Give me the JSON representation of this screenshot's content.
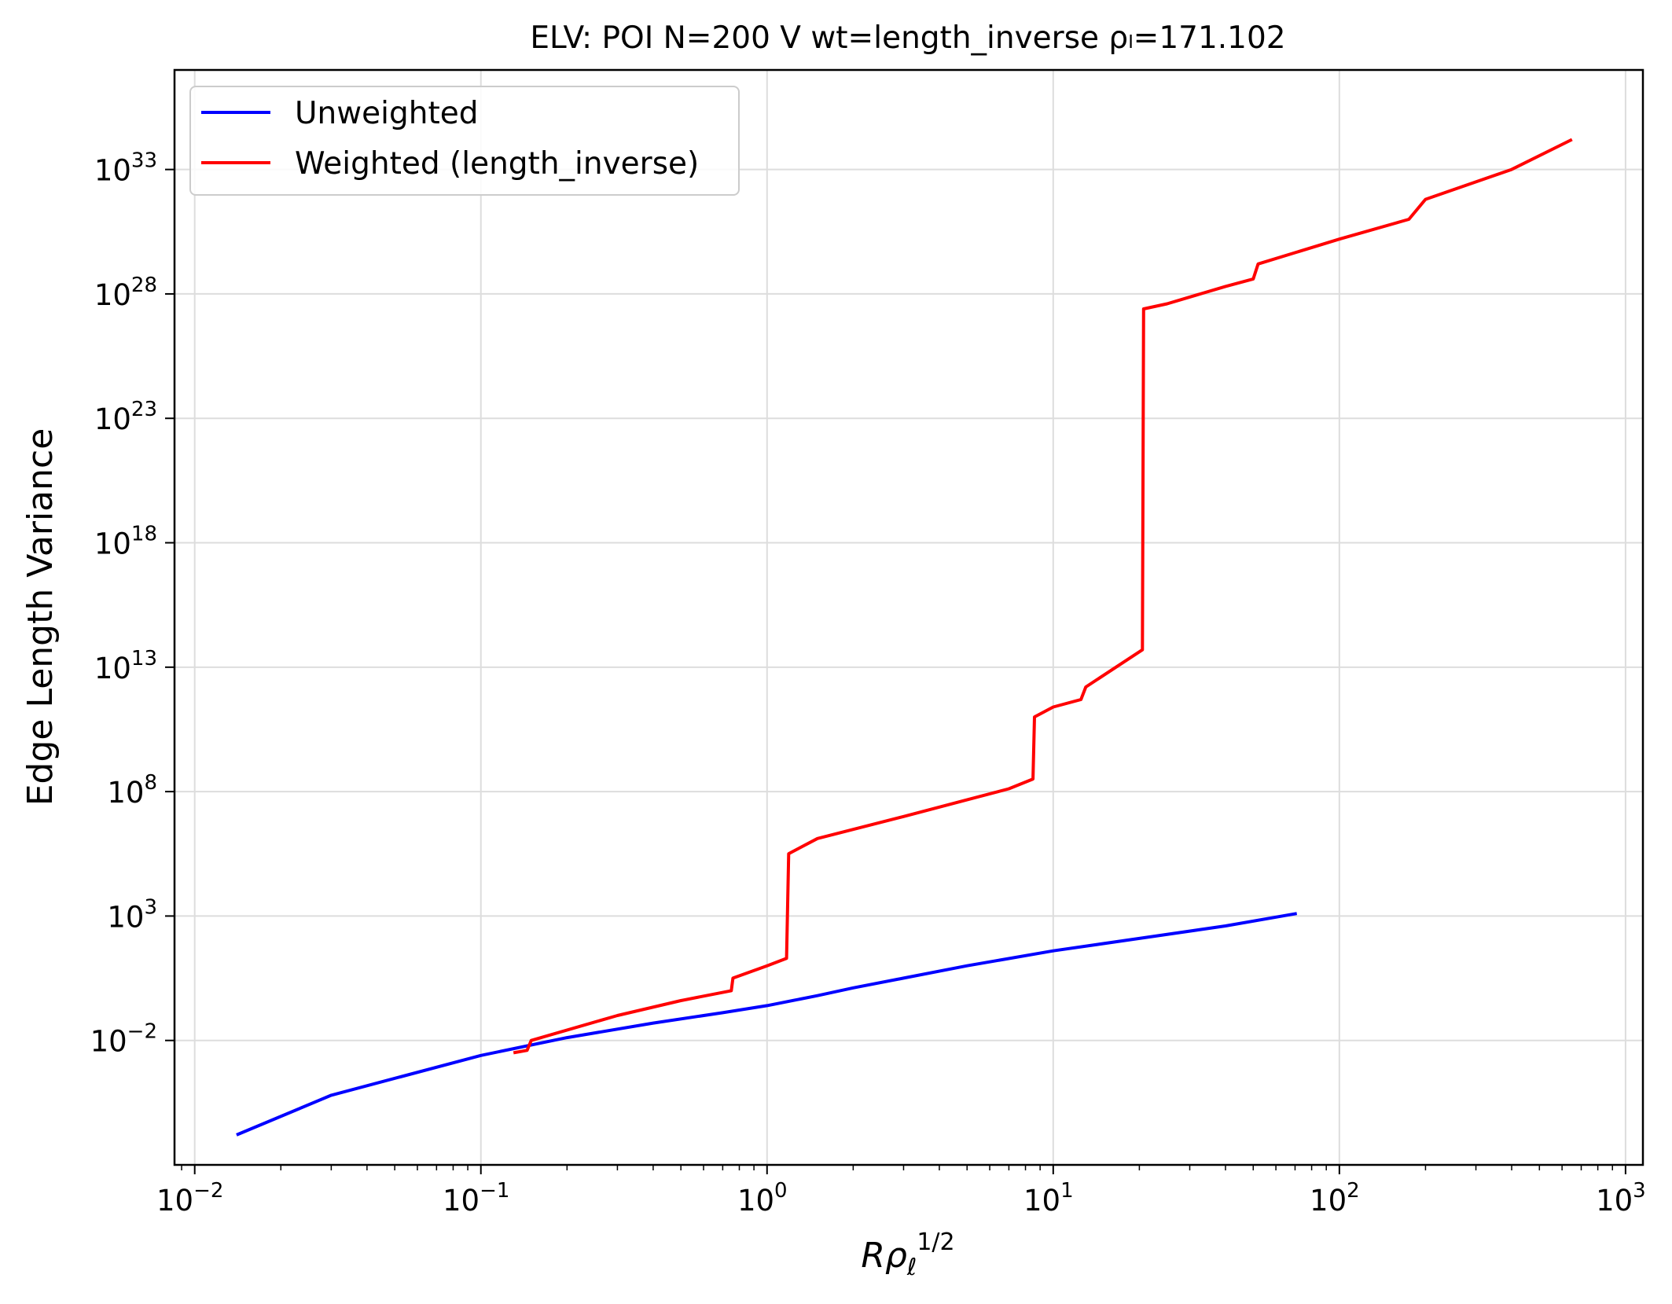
{
  "chart_data": {
    "type": "line",
    "title": "ELV: POI N=200 V wt=length_inverse ρₗ=171.102",
    "xlabel": {
      "main": "Rρ",
      "sub": "ℓ",
      "sup": "1/2"
    },
    "ylabel": "Edge Length Variance",
    "xscale": "log",
    "yscale": "log",
    "xlim": [
      0.0085,
      1150
    ],
    "ylim": [
      1e-07,
      1e+37
    ],
    "grid": true,
    "legend_position": "top-left",
    "x_ticks": [
      {
        "base": "10",
        "exp": "−2",
        "value": 0.01
      },
      {
        "base": "10",
        "exp": "−1",
        "value": 0.1
      },
      {
        "base": "10",
        "exp": "0",
        "value": 1
      },
      {
        "base": "10",
        "exp": "1",
        "value": 10
      },
      {
        "base": "10",
        "exp": "2",
        "value": 100
      },
      {
        "base": "10",
        "exp": "3",
        "value": 1000
      }
    ],
    "y_ticks": [
      {
        "base": "10",
        "exp": "−2",
        "value": 0.01
      },
      {
        "base": "10",
        "exp": "3",
        "value": 1000.0
      },
      {
        "base": "10",
        "exp": "8",
        "value": 100000000.0
      },
      {
        "base": "10",
        "exp": "13",
        "value": 10000000000000.0
      },
      {
        "base": "10",
        "exp": "18",
        "value": 1e+18
      },
      {
        "base": "10",
        "exp": "23",
        "value": 1e+23
      },
      {
        "base": "10",
        "exp": "28",
        "value": 1e+28
      },
      {
        "base": "10",
        "exp": "33",
        "value": 1e+33
      }
    ],
    "series": [
      {
        "name": "Unweighted",
        "color": "#0000ff",
        "points": [
          [
            0.014,
            1.6e-06
          ],
          [
            0.03,
            6.3e-05
          ],
          [
            0.1,
            0.0025
          ],
          [
            0.2,
            0.013
          ],
          [
            0.4,
            0.05
          ],
          [
            0.7,
            0.13
          ],
          [
            1.0,
            0.25
          ],
          [
            1.5,
            0.63
          ],
          [
            2.0,
            1.3
          ],
          [
            3.0,
            3.2
          ],
          [
            5.0,
            10
          ],
          [
            10.0,
            40
          ],
          [
            20.0,
            126
          ],
          [
            40.0,
            400
          ],
          [
            71.0,
            1260
          ]
        ]
      },
      {
        "name": "Weighted (length_inverse)",
        "color": "#ff0000",
        "points": [
          [
            0.13,
            0.0032
          ],
          [
            0.145,
            0.004
          ],
          [
            0.15,
            0.01
          ],
          [
            0.3,
            0.1
          ],
          [
            0.5,
            0.4
          ],
          [
            0.75,
            1.0
          ],
          [
            0.76,
            3.2
          ],
          [
            1.0,
            10
          ],
          [
            1.17,
            20
          ],
          [
            1.19,
            320000.0
          ],
          [
            1.5,
            1300000.0
          ],
          [
            3.0,
            10000000.0
          ],
          [
            7.0,
            130000000.0
          ],
          [
            8.5,
            320000000.0
          ],
          [
            8.6,
            100000000000.0
          ],
          [
            10.0,
            250000000000.0
          ],
          [
            12.5,
            500000000000.0
          ],
          [
            13.0,
            1600000000000.0
          ],
          [
            20.5,
            50000000000000.0
          ],
          [
            20.7,
            2.5e+27
          ],
          [
            25.0,
            4e+27
          ],
          [
            40.0,
            2e+28
          ],
          [
            50.0,
            4e+28
          ],
          [
            52.0,
            1.6e+29
          ],
          [
            100.0,
            1.6e+30
          ],
          [
            175.0,
            1e+31
          ],
          [
            200.0,
            6.3e+31
          ],
          [
            400.0,
            1e+33
          ],
          [
            650.0,
            1.6e+34
          ]
        ]
      }
    ]
  }
}
